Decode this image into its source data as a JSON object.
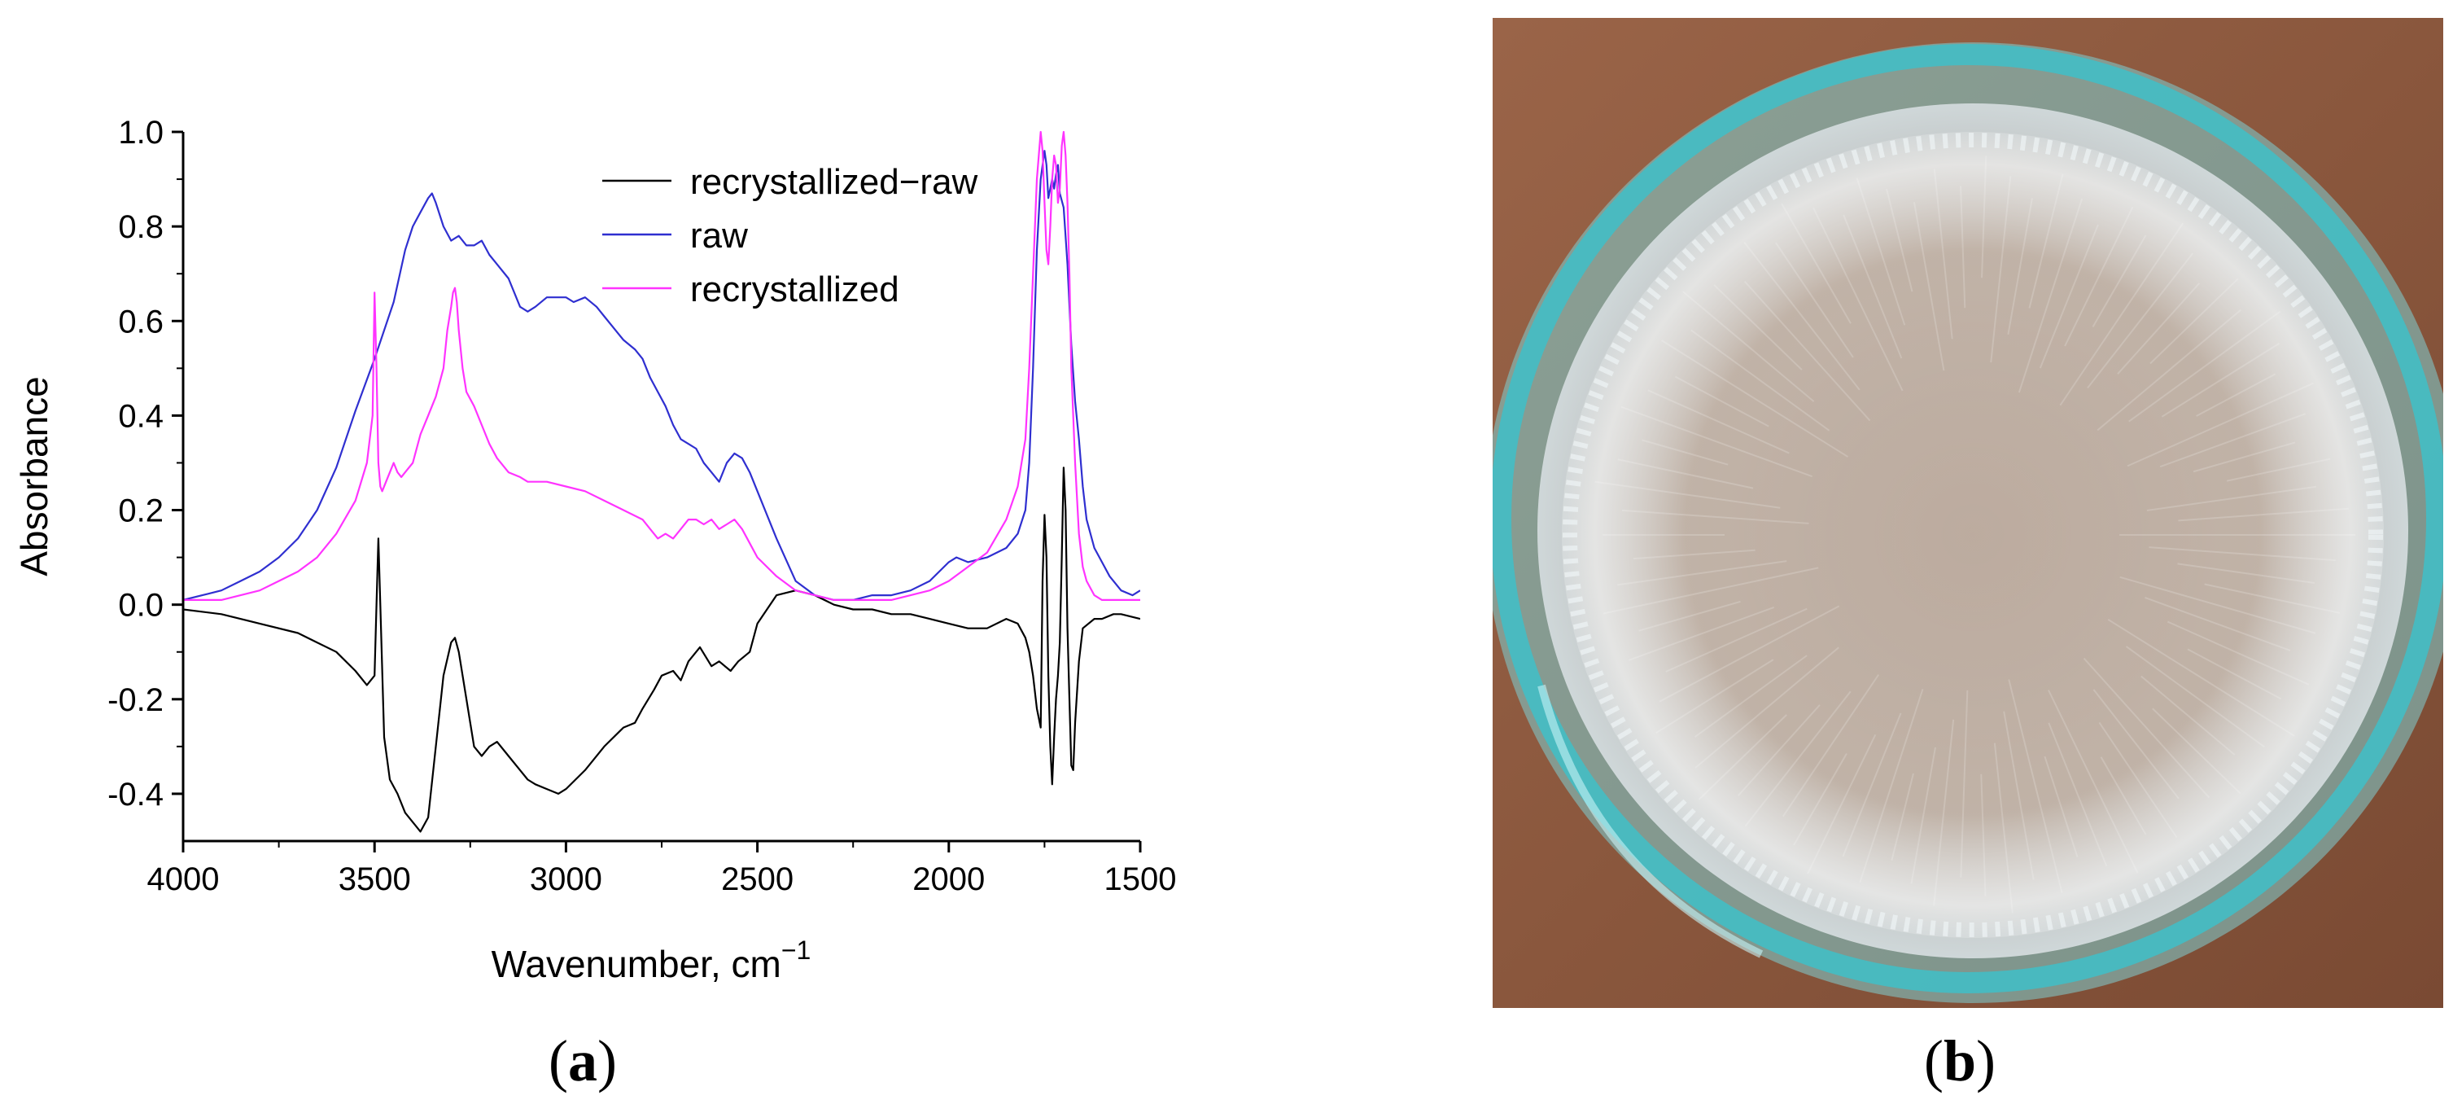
{
  "panels": {
    "a_label": "a",
    "b_label": "b"
  },
  "chart_data": {
    "type": "line",
    "title": "",
    "xlabel": "Wavenumber, cm",
    "xlabel_sup": "−1",
    "ylabel": "Absorbance",
    "xlim": [
      4000,
      1500
    ],
    "ylim": [
      -0.5,
      1.0
    ],
    "x_reversed": true,
    "x_ticks": [
      4000,
      3500,
      3000,
      2500,
      2000,
      1500
    ],
    "x_tick_labels": [
      "4000",
      "3500",
      "3000",
      "2500",
      "2000",
      "1500"
    ],
    "y_ticks": [
      1.0,
      0.8,
      0.6,
      0.4,
      0.2,
      0.0,
      -0.2,
      -0.4
    ],
    "y_tick_labels": [
      "1.0",
      "0.8",
      "0.6",
      "0.4",
      "0.2",
      "0.0",
      "-0.2",
      "-0.4"
    ],
    "grid": false,
    "legend_position": "top-right",
    "series": [
      {
        "name": "recrystallized−raw",
        "color": "#000000",
        "x": [
          4000,
          3900,
          3800,
          3700,
          3650,
          3600,
          3550,
          3520,
          3500,
          3495,
          3490,
          3485,
          3475,
          3460,
          3440,
          3420,
          3400,
          3380,
          3360,
          3340,
          3320,
          3300,
          3290,
          3280,
          3260,
          3240,
          3220,
          3200,
          3180,
          3150,
          3120,
          3100,
          3080,
          3050,
          3020,
          3000,
          2950,
          2900,
          2850,
          2820,
          2800,
          2770,
          2750,
          2720,
          2700,
          2680,
          2650,
          2620,
          2600,
          2570,
          2550,
          2520,
          2500,
          2450,
          2400,
          2350,
          2300,
          2250,
          2200,
          2150,
          2100,
          2050,
          2000,
          1950,
          1900,
          1850,
          1820,
          1800,
          1790,
          1780,
          1770,
          1760,
          1755,
          1750,
          1745,
          1740,
          1735,
          1730,
          1725,
          1720,
          1715,
          1710,
          1705,
          1700,
          1695,
          1690,
          1685,
          1680,
          1675,
          1670,
          1660,
          1650,
          1620,
          1600,
          1570,
          1550,
          1500
        ],
        "y": [
          -0.01,
          -0.02,
          -0.04,
          -0.06,
          -0.08,
          -0.1,
          -0.14,
          -0.17,
          -0.15,
          0.0,
          0.14,
          0.0,
          -0.28,
          -0.37,
          -0.4,
          -0.44,
          -0.46,
          -0.48,
          -0.45,
          -0.3,
          -0.15,
          -0.08,
          -0.07,
          -0.1,
          -0.2,
          -0.3,
          -0.32,
          -0.3,
          -0.29,
          -0.32,
          -0.35,
          -0.37,
          -0.38,
          -0.39,
          -0.4,
          -0.39,
          -0.35,
          -0.3,
          -0.26,
          -0.25,
          -0.22,
          -0.18,
          -0.15,
          -0.14,
          -0.16,
          -0.12,
          -0.09,
          -0.13,
          -0.12,
          -0.14,
          -0.12,
          -0.1,
          -0.04,
          0.02,
          0.03,
          0.02,
          0.0,
          -0.01,
          -0.01,
          -0.02,
          -0.02,
          -0.03,
          -0.04,
          -0.05,
          -0.05,
          -0.03,
          -0.04,
          -0.07,
          -0.1,
          -0.15,
          -0.22,
          -0.26,
          0.05,
          0.19,
          0.1,
          -0.15,
          -0.3,
          -0.38,
          -0.28,
          -0.2,
          -0.15,
          -0.08,
          0.1,
          0.29,
          0.2,
          -0.05,
          -0.2,
          -0.34,
          -0.35,
          -0.25,
          -0.12,
          -0.05,
          -0.03,
          -0.03,
          -0.02,
          -0.02,
          -0.03
        ]
      },
      {
        "name": "raw",
        "color": "#2f2fd0",
        "x": [
          4000,
          3950,
          3900,
          3850,
          3800,
          3750,
          3700,
          3650,
          3600,
          3550,
          3500,
          3450,
          3420,
          3400,
          3380,
          3360,
          3350,
          3340,
          3320,
          3300,
          3280,
          3260,
          3240,
          3220,
          3200,
          3180,
          3150,
          3120,
          3100,
          3080,
          3050,
          3020,
          3000,
          2980,
          2950,
          2920,
          2900,
          2880,
          2850,
          2820,
          2800,
          2780,
          2760,
          2740,
          2720,
          2700,
          2680,
          2660,
          2640,
          2620,
          2600,
          2580,
          2560,
          2540,
          2520,
          2500,
          2450,
          2400,
          2350,
          2300,
          2250,
          2200,
          2150,
          2100,
          2050,
          2000,
          1980,
          1950,
          1900,
          1850,
          1820,
          1800,
          1790,
          1780,
          1770,
          1760,
          1750,
          1745,
          1740,
          1735,
          1730,
          1725,
          1720,
          1715,
          1710,
          1700,
          1690,
          1680,
          1670,
          1660,
          1650,
          1640,
          1620,
          1600,
          1580,
          1550,
          1520,
          1500
        ],
        "y": [
          0.01,
          0.02,
          0.03,
          0.05,
          0.07,
          0.1,
          0.14,
          0.2,
          0.29,
          0.41,
          0.52,
          0.64,
          0.75,
          0.8,
          0.83,
          0.86,
          0.87,
          0.85,
          0.8,
          0.77,
          0.78,
          0.76,
          0.76,
          0.77,
          0.74,
          0.72,
          0.69,
          0.63,
          0.62,
          0.63,
          0.65,
          0.65,
          0.65,
          0.64,
          0.65,
          0.63,
          0.61,
          0.59,
          0.56,
          0.54,
          0.52,
          0.48,
          0.45,
          0.42,
          0.38,
          0.35,
          0.34,
          0.33,
          0.3,
          0.28,
          0.26,
          0.3,
          0.32,
          0.31,
          0.28,
          0.24,
          0.14,
          0.05,
          0.02,
          0.01,
          0.01,
          0.02,
          0.02,
          0.03,
          0.05,
          0.09,
          0.1,
          0.09,
          0.1,
          0.12,
          0.15,
          0.2,
          0.3,
          0.5,
          0.75,
          0.9,
          0.96,
          0.93,
          0.86,
          0.88,
          0.9,
          0.88,
          0.91,
          0.93,
          0.87,
          0.84,
          0.72,
          0.55,
          0.43,
          0.35,
          0.25,
          0.18,
          0.12,
          0.09,
          0.06,
          0.03,
          0.02,
          0.03
        ]
      },
      {
        "name": "recrystallized",
        "color": "#ff33ff",
        "x": [
          4000,
          3950,
          3900,
          3850,
          3800,
          3750,
          3700,
          3650,
          3600,
          3550,
          3520,
          3505,
          3500,
          3495,
          3490,
          3485,
          3480,
          3470,
          3460,
          3450,
          3440,
          3430,
          3420,
          3400,
          3380,
          3360,
          3340,
          3320,
          3310,
          3300,
          3295,
          3290,
          3285,
          3280,
          3270,
          3260,
          3240,
          3220,
          3200,
          3180,
          3150,
          3120,
          3100,
          3050,
          3000,
          2950,
          2900,
          2850,
          2800,
          2780,
          2760,
          2740,
          2720,
          2700,
          2680,
          2660,
          2640,
          2620,
          2600,
          2580,
          2560,
          2540,
          2520,
          2500,
          2450,
          2400,
          2350,
          2300,
          2250,
          2200,
          2150,
          2100,
          2050,
          2000,
          1950,
          1900,
          1850,
          1820,
          1800,
          1790,
          1780,
          1770,
          1760,
          1755,
          1750,
          1745,
          1740,
          1735,
          1730,
          1725,
          1720,
          1715,
          1710,
          1705,
          1700,
          1695,
          1690,
          1685,
          1680,
          1670,
          1660,
          1650,
          1640,
          1620,
          1600,
          1550,
          1500
        ],
        "y": [
          0.01,
          0.01,
          0.01,
          0.02,
          0.03,
          0.05,
          0.07,
          0.1,
          0.15,
          0.22,
          0.3,
          0.4,
          0.66,
          0.5,
          0.3,
          0.25,
          0.24,
          0.26,
          0.28,
          0.3,
          0.28,
          0.27,
          0.28,
          0.3,
          0.36,
          0.4,
          0.44,
          0.5,
          0.58,
          0.63,
          0.66,
          0.67,
          0.64,
          0.58,
          0.5,
          0.45,
          0.42,
          0.38,
          0.34,
          0.31,
          0.28,
          0.27,
          0.26,
          0.26,
          0.25,
          0.24,
          0.22,
          0.2,
          0.18,
          0.16,
          0.14,
          0.15,
          0.14,
          0.16,
          0.18,
          0.18,
          0.17,
          0.18,
          0.16,
          0.17,
          0.18,
          0.16,
          0.13,
          0.1,
          0.06,
          0.03,
          0.02,
          0.01,
          0.01,
          0.01,
          0.01,
          0.02,
          0.03,
          0.05,
          0.08,
          0.11,
          0.18,
          0.25,
          0.35,
          0.5,
          0.7,
          0.9,
          1.0,
          0.96,
          0.85,
          0.75,
          0.72,
          0.8,
          0.9,
          0.95,
          0.93,
          0.85,
          0.88,
          0.97,
          1.0,
          0.95,
          0.85,
          0.7,
          0.5,
          0.3,
          0.15,
          0.08,
          0.05,
          0.02,
          0.01,
          0.01,
          0.01
        ]
      }
    ]
  },
  "photo": {
    "colors": {
      "table": "#8a5a3e",
      "table_dark": "#6e4530",
      "rim": "#39b9c2",
      "glass": "#c9c9c6",
      "crystal": "#e4ecee"
    }
  }
}
